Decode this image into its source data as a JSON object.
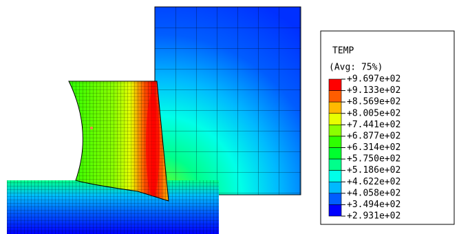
{
  "legend": {
    "title": "TEMP",
    "subtitle": "(Avg: 75%)",
    "labels": [
      "+9.697e+02",
      "+9.133e+02",
      "+8.569e+02",
      "+8.005e+02",
      "+7.441e+02",
      "+6.877e+02",
      "+6.314e+02",
      "+5.750e+02",
      "+5.186e+02",
      "+4.622e+02",
      "+4.058e+02",
      "+3.494e+02",
      "+2.931e+02"
    ],
    "colors": [
      "#ff0000",
      "#ff5d00",
      "#ffb900",
      "#e8ff00",
      "#8bff00",
      "#2eff00",
      "#00ff2e",
      "#00ff8b",
      "#00ffe8",
      "#00b9ff",
      "#005dff",
      "#0000ff"
    ]
  }
}
